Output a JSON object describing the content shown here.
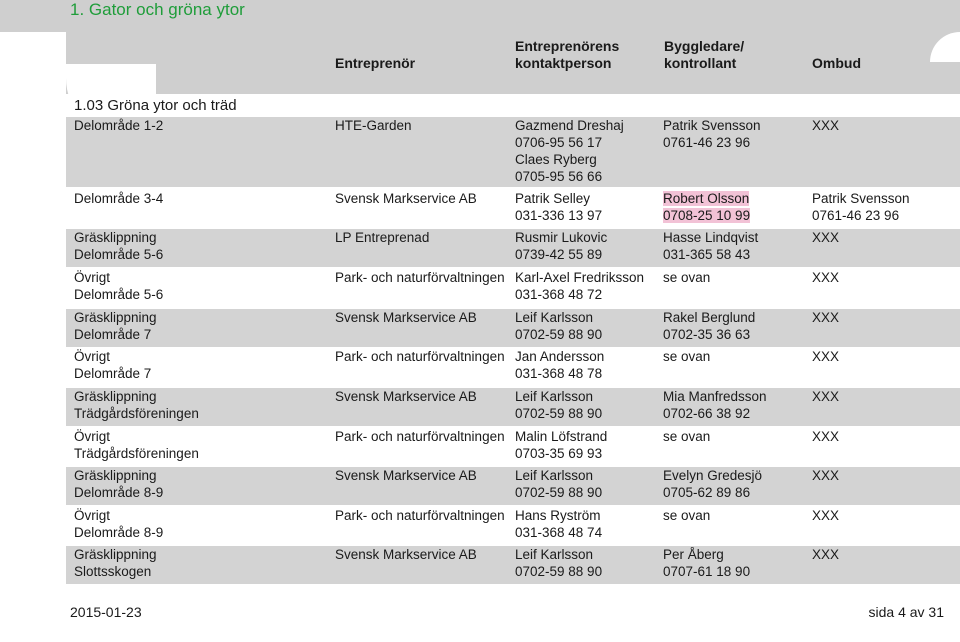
{
  "page": {
    "title": "1. Gator och gröna ytor"
  },
  "header": {
    "entreprenor": "Entreprenör",
    "kontakt_line1": "Entreprenörens",
    "kontakt_line2": "kontaktperson",
    "bygg_line1": "Byggledare/",
    "bygg_line2": "kontrollant",
    "ombud": "Ombud"
  },
  "section": {
    "title": "1.03 Gröna ytor och träd"
  },
  "rows": [
    {
      "area": [
        "Delområde 1-2"
      ],
      "contractor": "HTE-Garden",
      "contact": [
        "Gazmend Dreshaj",
        "0706-95 56 17",
        "Claes Ryberg",
        "0705-95 56 66"
      ],
      "supervisor": [
        "Patrik Svensson",
        "0761-46 23 96"
      ],
      "agent": [
        "XXX"
      ]
    },
    {
      "area": [
        "Delområde 3-4"
      ],
      "contractor": "Svensk Markservice AB",
      "contact": [
        "Patrik Selley",
        "031-336 13 97"
      ],
      "supervisor": [
        "Robert Olsson",
        "0708-25 10 99"
      ],
      "agent": [
        "Patrik Svensson",
        "0761-46 23 96"
      ]
    },
    {
      "area": [
        "Gräsklippning",
        "Delområde 5-6"
      ],
      "contractor": "LP Entreprenad",
      "contact": [
        "Rusmir Lukovic",
        "0739-42 55 89"
      ],
      "supervisor": [
        "Hasse Lindqvist",
        "031-365 58 43"
      ],
      "agent": [
        "XXX"
      ]
    },
    {
      "area": [
        "Övrigt",
        "Delområde 5-6"
      ],
      "contractor": "Park- och naturförvaltningen",
      "contact": [
        "Karl-Axel Fredriksson",
        "031-368 48 72"
      ],
      "supervisor": [
        "se ovan"
      ],
      "agent": [
        "XXX"
      ]
    },
    {
      "area": [
        "Gräsklippning",
        "Delområde 7"
      ],
      "contractor": "Svensk Markservice AB",
      "contact": [
        "Leif Karlsson",
        "0702-59 88 90"
      ],
      "supervisor": [
        "Rakel Berglund",
        "0702-35 36 63"
      ],
      "agent": [
        "XXX"
      ]
    },
    {
      "area": [
        "Övrigt",
        "Delområde 7"
      ],
      "contractor": "Park- och naturförvaltningen",
      "contact": [
        "Jan Andersson",
        "031-368 48 78"
      ],
      "supervisor": [
        "se ovan"
      ],
      "agent": [
        "XXX"
      ]
    },
    {
      "area": [
        "Gräsklippning",
        "Trädgårdsföreningen"
      ],
      "contractor": "Svensk Markservice AB",
      "contact": [
        "Leif Karlsson",
        "0702-59 88 90"
      ],
      "supervisor": [
        "Mia Manfredsson",
        "0702-66 38 92"
      ],
      "agent": [
        "XXX"
      ]
    },
    {
      "area": [
        "Övrigt",
        "Trädgårdsföreningen"
      ],
      "contractor": "Park- och naturförvaltningen",
      "contact": [
        "Malin Löfstrand",
        "0703-35 69 93"
      ],
      "supervisor": [
        "se ovan"
      ],
      "agent": [
        "XXX"
      ]
    },
    {
      "area": [
        "Gräsklippning",
        "Delområde 8-9"
      ],
      "contractor": "Svensk Markservice AB",
      "contact": [
        "Leif Karlsson",
        "0702-59 88 90"
      ],
      "supervisor": [
        "Evelyn Gredesjö",
        "0705-62 89 86"
      ],
      "agent": [
        "XXX"
      ]
    },
    {
      "area": [
        "Övrigt",
        "Delområde 8-9"
      ],
      "contractor": "Park- och naturförvaltningen",
      "contact": [
        "Hans Ryström",
        "031-368 48 74"
      ],
      "supervisor": [
        "se ovan"
      ],
      "agent": [
        "XXX"
      ]
    },
    {
      "area": [
        "Gräsklippning",
        "Slottsskogen"
      ],
      "contractor": "Svensk Markservice AB",
      "contact": [
        "Leif Karlsson",
        "0702-59 88 90"
      ],
      "supervisor": [
        "Per Åberg",
        "0707-61 18 90"
      ],
      "agent": [
        "XXX"
      ]
    }
  ],
  "footer": {
    "date": "2015-01-23",
    "page": "sida 4 av 31"
  },
  "colors": {
    "title_green": "#1f9d3a",
    "row_shade": "#d3d3d3",
    "highlight_pink": "#f2c2d6"
  }
}
